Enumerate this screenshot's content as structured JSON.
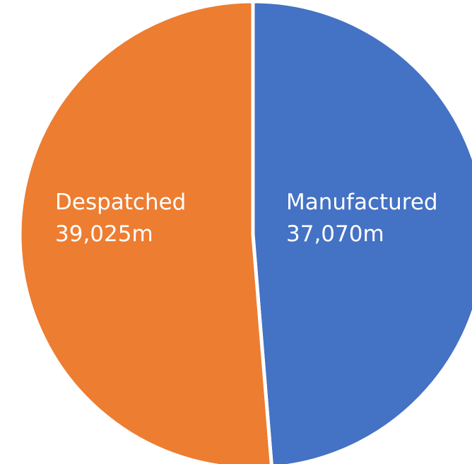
{
  "chart_data": {
    "type": "pie",
    "categories": [
      "Manufactured",
      "Despatched"
    ],
    "values": [
      37070,
      39025
    ],
    "value_labels": [
      "37,070m",
      "39,025m"
    ],
    "colors": [
      "#4472C4",
      "#ED7D31"
    ],
    "start_angle_deg": 0,
    "direction": "clockwise",
    "legend": "none",
    "labels_inside": true
  }
}
